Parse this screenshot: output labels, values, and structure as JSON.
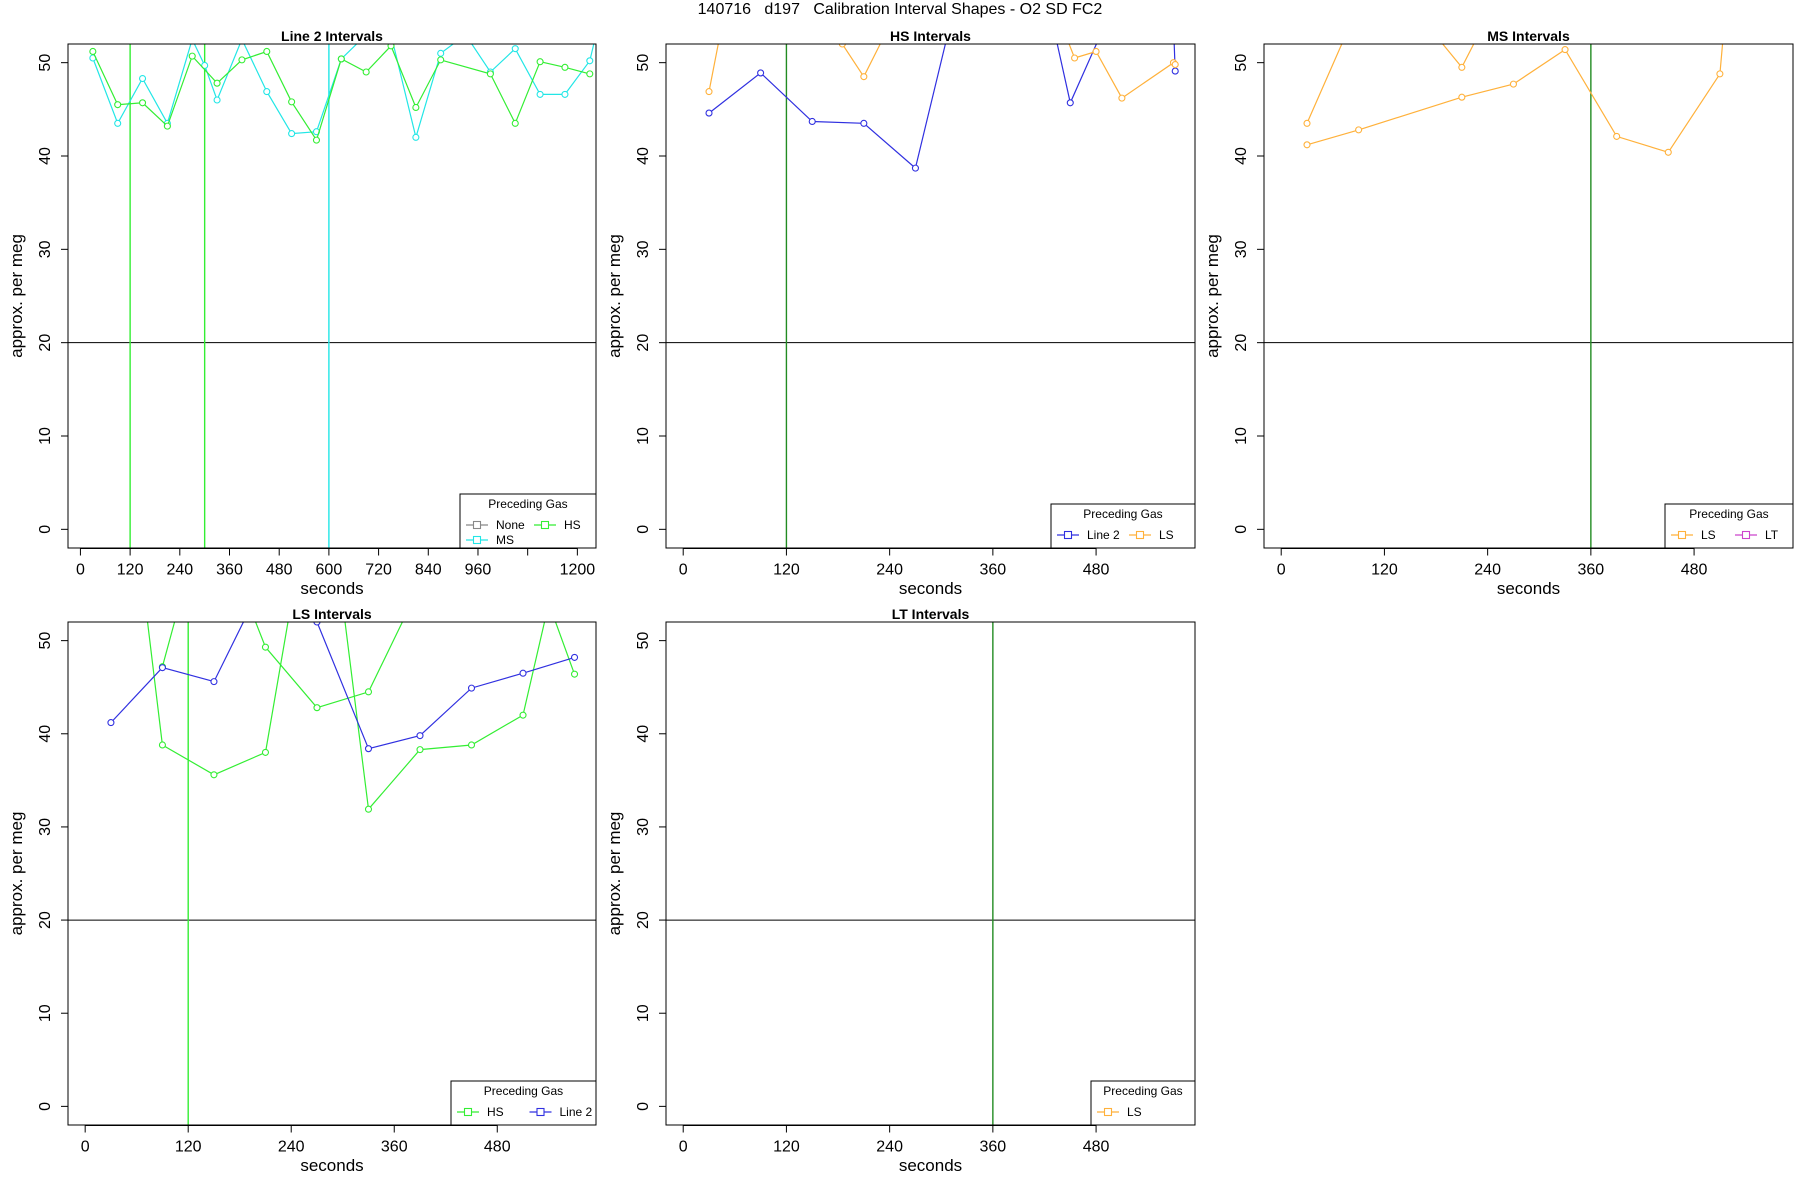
{
  "title": "140716   d197   Calibration Interval Shapes - O2 SD FC2",
  "colors": {
    "None": "#888888",
    "MS": "#22e6e6",
    "HS": "#33ee33",
    "LS": "#ffb13b",
    "LT": "#cc44cc",
    "Line 2": "#3030e0",
    "ref": "#228b22"
  },
  "legend_title": "Preceding Gas",
  "chart_data": [
    {
      "type": "line",
      "title": "Line 2 Intervals",
      "xlabel": "seconds",
      "ylabel": "approx. per meg",
      "xlim": [
        -30,
        1245
      ],
      "ylim": [
        -2,
        52
      ],
      "xticks": [
        0,
        120,
        240,
        360,
        480,
        600,
        720,
        840,
        960,
        1080,
        1200
      ],
      "xtick_labels": [
        "0",
        "120",
        "240",
        "360",
        "480",
        "600",
        "720",
        "840",
        "960",
        "",
        "1200"
      ],
      "yticks": [
        0,
        10,
        20,
        30,
        40,
        50
      ],
      "hlines": [
        {
          "y": 20,
          "color": "#000000"
        }
      ],
      "vlines": [
        {
          "x": 120,
          "color": "#33ee33"
        },
        {
          "x": 300,
          "color": "#33ee33"
        },
        {
          "x": 600,
          "color": "#22e6e6"
        }
      ],
      "legend_placement": "bottom-right",
      "legend_entries": [
        "None",
        "HS",
        "MS"
      ],
      "series": [
        {
          "name": "MS",
          "x": [
            30,
            90,
            150,
            210,
            270,
            300,
            330,
            390,
            450,
            510,
            570,
            630,
            690,
            750,
            810,
            870,
            930,
            990,
            1050,
            1110,
            1170,
            1230,
            1245
          ],
          "y": [
            50.5,
            43.5,
            48.3,
            43.5,
            52.5,
            49.7,
            46.0,
            52.5,
            46.9,
            42.4,
            42.6,
            50.4,
            53.0,
            53.0,
            42.0,
            51.0,
            53.0,
            49.0,
            51.5,
            46.6,
            46.6,
            50.2,
            53.0
          ]
        },
        {
          "name": "HS",
          "x": [
            30,
            90,
            150,
            210,
            270,
            330,
            390,
            450,
            510,
            570,
            630,
            690,
            750,
            810,
            870,
            990,
            1050,
            1110,
            1170,
            1230
          ],
          "y": [
            51.2,
            45.5,
            45.7,
            43.2,
            50.7,
            47.8,
            50.3,
            51.2,
            45.8,
            41.7,
            50.4,
            49.0,
            51.8,
            45.2,
            50.3,
            48.8,
            43.5,
            50.1,
            49.5,
            48.8
          ]
        }
      ]
    },
    {
      "type": "line",
      "title": "HS Intervals",
      "xlabel": "seconds",
      "ylabel": "approx. per meg",
      "xlim": [
        -20,
        595
      ],
      "ylim": [
        -2,
        52
      ],
      "xticks": [
        0,
        120,
        240,
        360,
        480
      ],
      "xtick_labels": [
        "0",
        "120",
        "240",
        "360",
        "480"
      ],
      "yticks": [
        0,
        10,
        20,
        30,
        40,
        50
      ],
      "hlines": [
        {
          "y": 20,
          "color": "#000000"
        }
      ],
      "vlines": [
        {
          "x": 120,
          "color": "#228b22"
        }
      ],
      "legend_placement": "bottom-right",
      "legend_entries": [
        "Line 2",
        "LS"
      ],
      "series": [
        {
          "name": "Line 2",
          "x": [
            30,
            90,
            150,
            210,
            270,
            310,
            430,
            450,
            490,
            570,
            572
          ],
          "y": [
            44.6,
            48.9,
            43.7,
            43.5,
            38.7,
            54.0,
            54.0,
            45.7,
            54.0,
            54.0,
            49.1
          ]
        },
        {
          "name": "LS",
          "x": [
            30,
            45,
            160,
            185,
            210,
            240
          ],
          "y": [
            46.9,
            54.0,
            54.0,
            52.0,
            48.5,
            54.0
          ]
        },
        {
          "name": "LS",
          "x": [
            440,
            455,
            480,
            510,
            570,
            572
          ],
          "y": [
            54.0,
            50.5,
            51.2,
            46.2,
            50.0,
            49.8
          ]
        }
      ]
    },
    {
      "type": "line",
      "title": "MS Intervals",
      "xlabel": "seconds",
      "ylabel": "approx. per meg",
      "xlim": [
        -20,
        595
      ],
      "ylim": [
        -2,
        52
      ],
      "xticks": [
        0,
        120,
        240,
        360,
        480
      ],
      "xtick_labels": [
        "0",
        "120",
        "240",
        "360",
        "480"
      ],
      "yticks": [
        0,
        10,
        20,
        30,
        40,
        50
      ],
      "hlines": [
        {
          "y": 20,
          "color": "#000000"
        }
      ],
      "vlines": [
        {
          "x": 360,
          "color": "#228b22"
        }
      ],
      "legend_placement": "bottom-right",
      "legend_entries": [
        "LS",
        "LT"
      ],
      "series": [
        {
          "name": "LS",
          "x": [
            30,
            90,
            210,
            270,
            330,
            390,
            450,
            510,
            515
          ],
          "y": [
            41.2,
            42.8,
            46.3,
            47.7,
            51.4,
            42.1,
            40.4,
            48.8,
            54.0
          ]
        },
        {
          "name": "LS",
          "x": [
            30,
            80,
            170,
            210,
            235
          ],
          "y": [
            43.5,
            54.0,
            54.0,
            49.5,
            54.0
          ]
        }
      ]
    },
    {
      "type": "line",
      "title": "LS Intervals",
      "xlabel": "seconds",
      "ylabel": "approx. per meg",
      "xlim": [
        -20,
        595
      ],
      "ylim": [
        -2,
        52
      ],
      "xticks": [
        0,
        120,
        240,
        360,
        480
      ],
      "xtick_labels": [
        "0",
        "120",
        "240",
        "360",
        "480"
      ],
      "yticks": [
        0,
        10,
        20,
        30,
        40,
        50
      ],
      "hlines": [
        {
          "y": 20,
          "color": "#000000"
        }
      ],
      "vlines": [
        {
          "x": 120,
          "color": "#33ee33"
        }
      ],
      "legend_placement": "bottom-right",
      "legend_entries": [
        "HS",
        "Line 2"
      ],
      "series": [
        {
          "name": "HS",
          "x": [
            30,
            70,
            90,
            150,
            210,
            240,
            300,
            330,
            390,
            450,
            510,
            540,
            570
          ],
          "y": [
            54.0,
            54.0,
            38.8,
            35.6,
            38.0,
            54.0,
            54.0,
            31.9,
            38.3,
            38.8,
            42.0,
            54.0,
            46.4
          ]
        },
        {
          "name": "HS",
          "x": [
            90,
            110,
            140,
            190,
            210,
            270,
            330,
            380
          ],
          "y": [
            47.2,
            54.0,
            54.0,
            54.0,
            49.3,
            42.8,
            44.5,
            54.0
          ]
        },
        {
          "name": "Line 2",
          "x": [
            30,
            90,
            150,
            195,
            270,
            330,
            390,
            450,
            510,
            570
          ],
          "y": [
            41.2,
            47.1,
            45.6,
            54.0,
            52.0,
            38.4,
            39.8,
            44.9,
            46.5,
            48.2
          ]
        }
      ]
    },
    {
      "type": "line",
      "title": "LT Intervals",
      "xlabel": "seconds",
      "ylabel": "approx. per meg",
      "xlim": [
        -20,
        595
      ],
      "ylim": [
        -2,
        52
      ],
      "xticks": [
        0,
        120,
        240,
        360,
        480
      ],
      "xtick_labels": [
        "0",
        "120",
        "240",
        "360",
        "480"
      ],
      "yticks": [
        0,
        10,
        20,
        30,
        40,
        50
      ],
      "hlines": [
        {
          "y": 20,
          "color": "#000000"
        }
      ],
      "vlines": [
        {
          "x": 360,
          "color": "#228b22"
        }
      ],
      "legend_placement": "bottom-right",
      "legend_entries": [
        "LS"
      ],
      "series": []
    }
  ]
}
